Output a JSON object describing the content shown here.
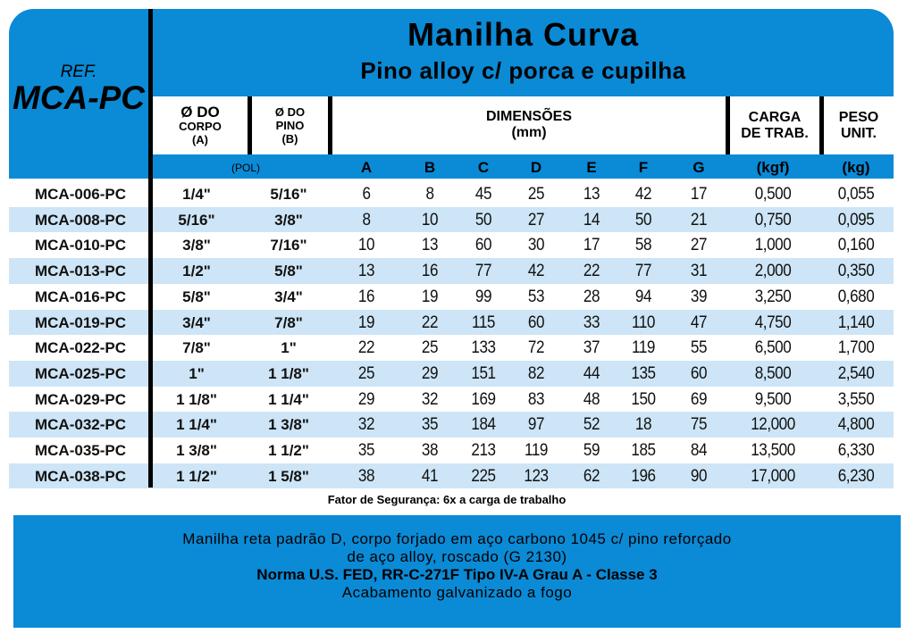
{
  "ref": {
    "label": "REF.",
    "code": "MCA-PC"
  },
  "title": {
    "main": "Manilha Curva",
    "sub": "Pino alloy c/ porca e cupilha"
  },
  "headers": {
    "corpo": [
      "Ø DO",
      "CORPO",
      "(A)"
    ],
    "pino": [
      "Ø DO",
      "PINO",
      "(B)"
    ],
    "dimensoes": [
      "DIMENSÕES",
      "(mm)"
    ],
    "carga": [
      "CARGA",
      "DE TRAB."
    ],
    "peso": [
      "PESO",
      "UNIT."
    ]
  },
  "units": [
    "(POL)",
    "A",
    "B",
    "C",
    "D",
    "E",
    "F",
    "G",
    "(kgf)",
    "(kg)"
  ],
  "rows": [
    [
      "MCA-006-PC",
      "1/4\"",
      "5/16\"",
      "6",
      "8",
      "45",
      "25",
      "13",
      "42",
      "17",
      "0,500",
      "0,055"
    ],
    [
      "MCA-008-PC",
      "5/16\"",
      "3/8\"",
      "8",
      "10",
      "50",
      "27",
      "14",
      "50",
      "21",
      "0,750",
      "0,095"
    ],
    [
      "MCA-010-PC",
      "3/8\"",
      "7/16\"",
      "10",
      "13",
      "60",
      "30",
      "17",
      "58",
      "27",
      "1,000",
      "0,160"
    ],
    [
      "MCA-013-PC",
      "1/2\"",
      "5/8\"",
      "13",
      "16",
      "77",
      "42",
      "22",
      "77",
      "31",
      "2,000",
      "0,350"
    ],
    [
      "MCA-016-PC",
      "5/8\"",
      "3/4\"",
      "16",
      "19",
      "99",
      "53",
      "28",
      "94",
      "39",
      "3,250",
      "0,680"
    ],
    [
      "MCA-019-PC",
      "3/4\"",
      "7/8\"",
      "19",
      "22",
      "115",
      "60",
      "33",
      "110",
      "47",
      "4,750",
      "1,140"
    ],
    [
      "MCA-022-PC",
      "7/8\"",
      "1\"",
      "22",
      "25",
      "133",
      "72",
      "37",
      "119",
      "55",
      "6,500",
      "1,700"
    ],
    [
      "MCA-025-PC",
      "1\"",
      "1 1/8\"",
      "25",
      "29",
      "151",
      "82",
      "44",
      "135",
      "60",
      "8,500",
      "2,540"
    ],
    [
      "MCA-029-PC",
      "1 1/8\"",
      "1 1/4\"",
      "29",
      "32",
      "169",
      "83",
      "48",
      "150",
      "69",
      "9,500",
      "3,550"
    ],
    [
      "MCA-032-PC",
      "1 1/4\"",
      "1 3/8\"",
      "32",
      "35",
      "184",
      "97",
      "52",
      "18",
      "75",
      "12,000",
      "4,800"
    ],
    [
      "MCA-035-PC",
      "1 3/8\"",
      "1 1/2\"",
      "35",
      "38",
      "213",
      "119",
      "59",
      "185",
      "84",
      "13,500",
      "6,330"
    ],
    [
      "MCA-038-PC",
      "1 1/2\"",
      "1 5/8\"",
      "38",
      "41",
      "225",
      "123",
      "62",
      "196",
      "90",
      "17,000",
      "6,230"
    ]
  ],
  "note": "Fator de Segurança: 6x a carga de trabalho",
  "description": [
    "Manilha reta padrão D, corpo forjado em aço carbono 1045 c/ pino reforçado",
    "de aço alloy, roscado (G 2130)",
    "Norma U.S. FED, RR-C-271F Tipo IV-A Grau A - Classe 3",
    "Acabamento galvanizado a fogo"
  ],
  "colors": {
    "header_blue": "#0b8ad6",
    "stripe": "#cde5f6"
  }
}
